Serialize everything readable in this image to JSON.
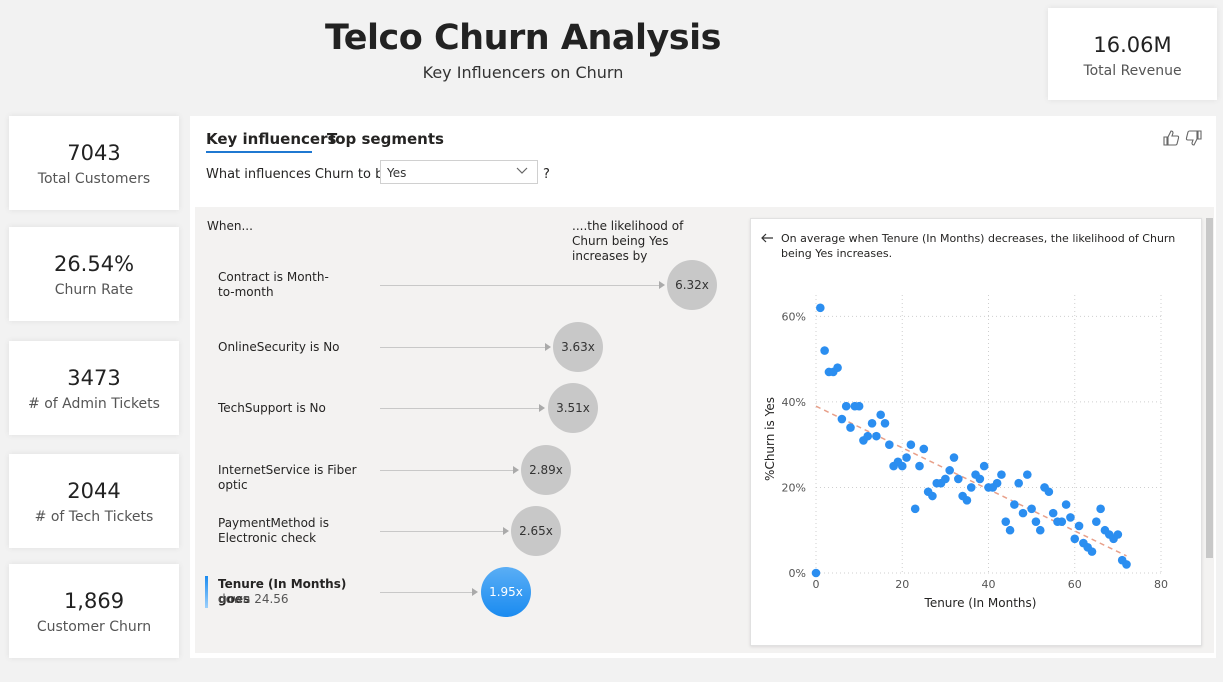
{
  "header": {
    "title": "Telco Churn Analysis",
    "subtitle": "Key Influencers on Churn"
  },
  "revenue": {
    "value": "16.06M",
    "label": "Total Revenue"
  },
  "kpis": [
    {
      "value": "7043",
      "label": "Total Customers"
    },
    {
      "value": "26.54%",
      "label": "Churn Rate"
    },
    {
      "value": "3473",
      "label": "# of Admin Tickets"
    },
    {
      "value": "2044",
      "label": "# of Tech Tickets"
    },
    {
      "value": "1,869",
      "label": "Customer Churn"
    }
  ],
  "visual": {
    "tabs": [
      "Key influencers",
      "Top segments"
    ],
    "active_tab": "Key influencers",
    "question_prefix": "What influences Churn to be",
    "dropdown_value": "Yes",
    "question_suffix": "?",
    "when_label": "When...",
    "likelihood_label": "....the likelihood of Churn being Yes increases by",
    "influencers": [
      {
        "label": "Contract is Month-to-month",
        "value": "6.32x"
      },
      {
        "label": "OnlineSecurity is No",
        "value": "3.63x"
      },
      {
        "label": "TechSupport is No",
        "value": "3.51x"
      },
      {
        "label": "InternetService is Fiber optic",
        "value": "2.89x"
      },
      {
        "label": "PaymentMethod is Electronic check",
        "value": "2.65x"
      },
      {
        "label": "Tenure (In Months) goes",
        "sublabel": "down 24.56",
        "value": "1.95x",
        "selected": true
      }
    ],
    "detail_text": "On average when Tenure (In Months) decreases, the likelihood of Churn being Yes increases."
  },
  "icons": {
    "back": "arrow-left-icon",
    "dropdown": "chevron-down-icon",
    "like": "thumbs-up-icon",
    "dislike": "thumbs-down-icon"
  },
  "colors": {
    "accent": "#1f78d1",
    "point": "#2b8ef0",
    "trend": "#e8a08a",
    "bubble": "#c8c8c8"
  },
  "chart_data": {
    "type": "scatter",
    "xlabel": "Tenure (In Months)",
    "ylabel": "%Churn is Yes",
    "xlim": [
      0,
      80
    ],
    "ylim": [
      0,
      0.65
    ],
    "xticks": [
      0,
      20,
      40,
      60,
      80
    ],
    "xtick_labels": [
      "0",
      "20",
      "40",
      "60",
      "80"
    ],
    "yticks": [
      0,
      0.2,
      0.4,
      0.6
    ],
    "ytick_labels": [
      "0%",
      "20%",
      "40%",
      "60%"
    ],
    "grid": true,
    "trend_line": {
      "x": [
        0,
        72
      ],
      "y": [
        0.39,
        0.04
      ]
    },
    "x": [
      0,
      1,
      2,
      3,
      4,
      5,
      6,
      7,
      8,
      9,
      10,
      11,
      12,
      13,
      14,
      15,
      16,
      17,
      18,
      19,
      20,
      21,
      22,
      23,
      24,
      25,
      26,
      27,
      28,
      29,
      30,
      31,
      32,
      33,
      34,
      35,
      36,
      37,
      38,
      39,
      40,
      41,
      42,
      43,
      44,
      45,
      46,
      47,
      48,
      49,
      50,
      51,
      52,
      53,
      54,
      55,
      56,
      57,
      58,
      59,
      60,
      61,
      62,
      63,
      64,
      65,
      66,
      67,
      68,
      69,
      70,
      71,
      72
    ],
    "y": [
      0.0,
      0.62,
      0.52,
      0.47,
      0.47,
      0.48,
      0.36,
      0.39,
      0.34,
      0.39,
      0.39,
      0.31,
      0.32,
      0.35,
      0.32,
      0.37,
      0.35,
      0.3,
      0.25,
      0.26,
      0.25,
      0.27,
      0.3,
      0.15,
      0.25,
      0.29,
      0.19,
      0.18,
      0.21,
      0.21,
      0.22,
      0.24,
      0.27,
      0.22,
      0.18,
      0.17,
      0.2,
      0.23,
      0.22,
      0.25,
      0.2,
      0.2,
      0.21,
      0.23,
      0.12,
      0.1,
      0.16,
      0.21,
      0.14,
      0.23,
      0.15,
      0.12,
      0.1,
      0.2,
      0.19,
      0.14,
      0.12,
      0.12,
      0.16,
      0.13,
      0.08,
      0.11,
      0.07,
      0.06,
      0.05,
      0.12,
      0.15,
      0.1,
      0.09,
      0.08,
      0.09,
      0.03,
      0.02
    ]
  }
}
